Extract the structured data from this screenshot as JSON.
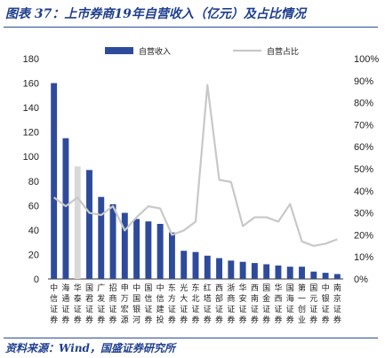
{
  "figure": {
    "title": "图表 37：上市券商19年自营收入（亿元）及占比情况",
    "source": "资料来源：Wind，国盛证券研究所"
  },
  "colors": {
    "bar": "#2e4b9b",
    "bar_highlight": "#d9d9d9",
    "line": "#c8c8c8",
    "text_title": "#1f3f8f"
  },
  "chart_data": {
    "type": "bar",
    "categories": [
      "中信证券",
      "海通证券",
      "华泰证券",
      "国君证券",
      "广发证券",
      "招商证券",
      "申万宏源",
      "中国银河",
      "国信证券",
      "中信建投",
      "东方证券",
      "光大证券",
      "东北证券",
      "红塔证券",
      "西部证券",
      "浙商证券",
      "华安证券",
      "西南证券",
      "国金证券",
      "华西证券",
      "国海证券",
      "第一创业",
      "国元证券",
      "中银证券",
      "南京证券"
    ],
    "highlight_index": 2,
    "series": [
      {
        "name": "自营收入",
        "type": "bar",
        "axis": "left",
        "values": [
          160,
          115,
          92,
          89,
          67,
          61,
          54,
          49,
          47,
          45,
          38,
          23,
          22,
          19,
          17,
          15,
          14,
          13,
          12,
          11,
          10,
          10,
          6,
          5,
          4
        ]
      },
      {
        "name": "自营占比",
        "type": "line",
        "axis": "right",
        "values": [
          37,
          33,
          37,
          30,
          29,
          33,
          22,
          28,
          33,
          32,
          20,
          22,
          26,
          88,
          45,
          44,
          24,
          28,
          28,
          26,
          34,
          17,
          15,
          16,
          18
        ]
      }
    ],
    "y_left": {
      "ylim": [
        0,
        180
      ],
      "ticks": [
        0,
        20,
        40,
        60,
        80,
        100,
        120,
        140,
        160,
        180
      ]
    },
    "y_right": {
      "ylim": [
        0,
        100
      ],
      "ticks": [
        "0%",
        "10%",
        "20%",
        "30%",
        "40%",
        "50%",
        "60%",
        "70%",
        "80%",
        "90%",
        "100%"
      ]
    },
    "legend_position": "top"
  }
}
